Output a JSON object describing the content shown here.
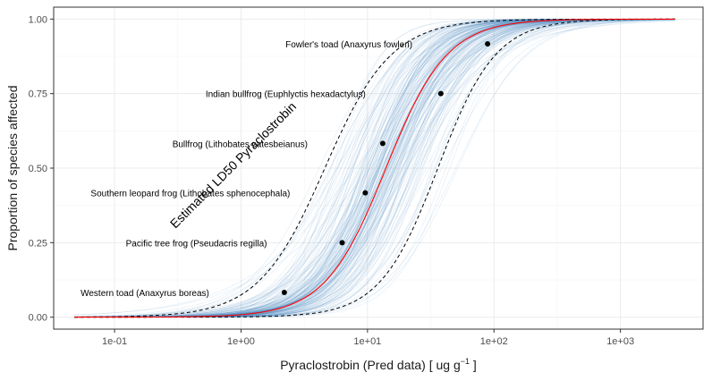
{
  "chart_data": {
    "type": "scatter",
    "title": "",
    "xlabel": "Pyraclostrobin (Pred data) [ ug g",
    "xlabel_sup": "−1",
    "xlabel_tail": " ]",
    "ylabel": "Proportion of species affected",
    "x_scale": "log10",
    "xlim": [
      0.033,
      4500
    ],
    "ylim": [
      -0.04,
      1.04
    ],
    "x_ticks": [
      0.1,
      1,
      10,
      100,
      1000
    ],
    "x_tick_labels": [
      "1e-01",
      "1e+00",
      "1e+01",
      "1e+02",
      "1e+03"
    ],
    "y_ticks": [
      0,
      0.25,
      0.5,
      0.75,
      1
    ],
    "y_tick_labels": [
      "0.00",
      "0.25",
      "0.50",
      "0.75",
      "1.00"
    ],
    "grid": true,
    "annotation": "Estimated LD50 Pyraclostrobin",
    "points": [
      {
        "x": 2.2,
        "y": 0.083,
        "label": "Western toad (Anaxyrus boreas)"
      },
      {
        "x": 6.3,
        "y": 0.25,
        "label": "Pacific tree frog (Pseudacris regilla)"
      },
      {
        "x": 9.6,
        "y": 0.417,
        "label": "Southern leopard frog (Lithobates sphenocephala)"
      },
      {
        "x": 13.2,
        "y": 0.583,
        "label": "Bullfrog (Lithobates catesbeianus)"
      },
      {
        "x": 38.0,
        "y": 0.75,
        "label": "Indian bullfrog (Euphlyctis hexadactylus)"
      },
      {
        "x": 89.0,
        "y": 0.917,
        "label": "Fowler's toad (Anaxyrus fowleri)"
      }
    ],
    "fit": {
      "series": "fitted curve",
      "location": 14.0,
      "scale": 1.8,
      "x_range": [
        0.048,
        2700
      ],
      "color": "#ff0000"
    },
    "confidence_band": {
      "lower_location": 36.0,
      "upper_location": 4.6,
      "lower_scale": 1.9,
      "upper_scale": 1.65,
      "style": "dashed",
      "color": "#000000"
    },
    "bootstrap": {
      "count": 180,
      "color": "#4f8bc0"
    }
  }
}
